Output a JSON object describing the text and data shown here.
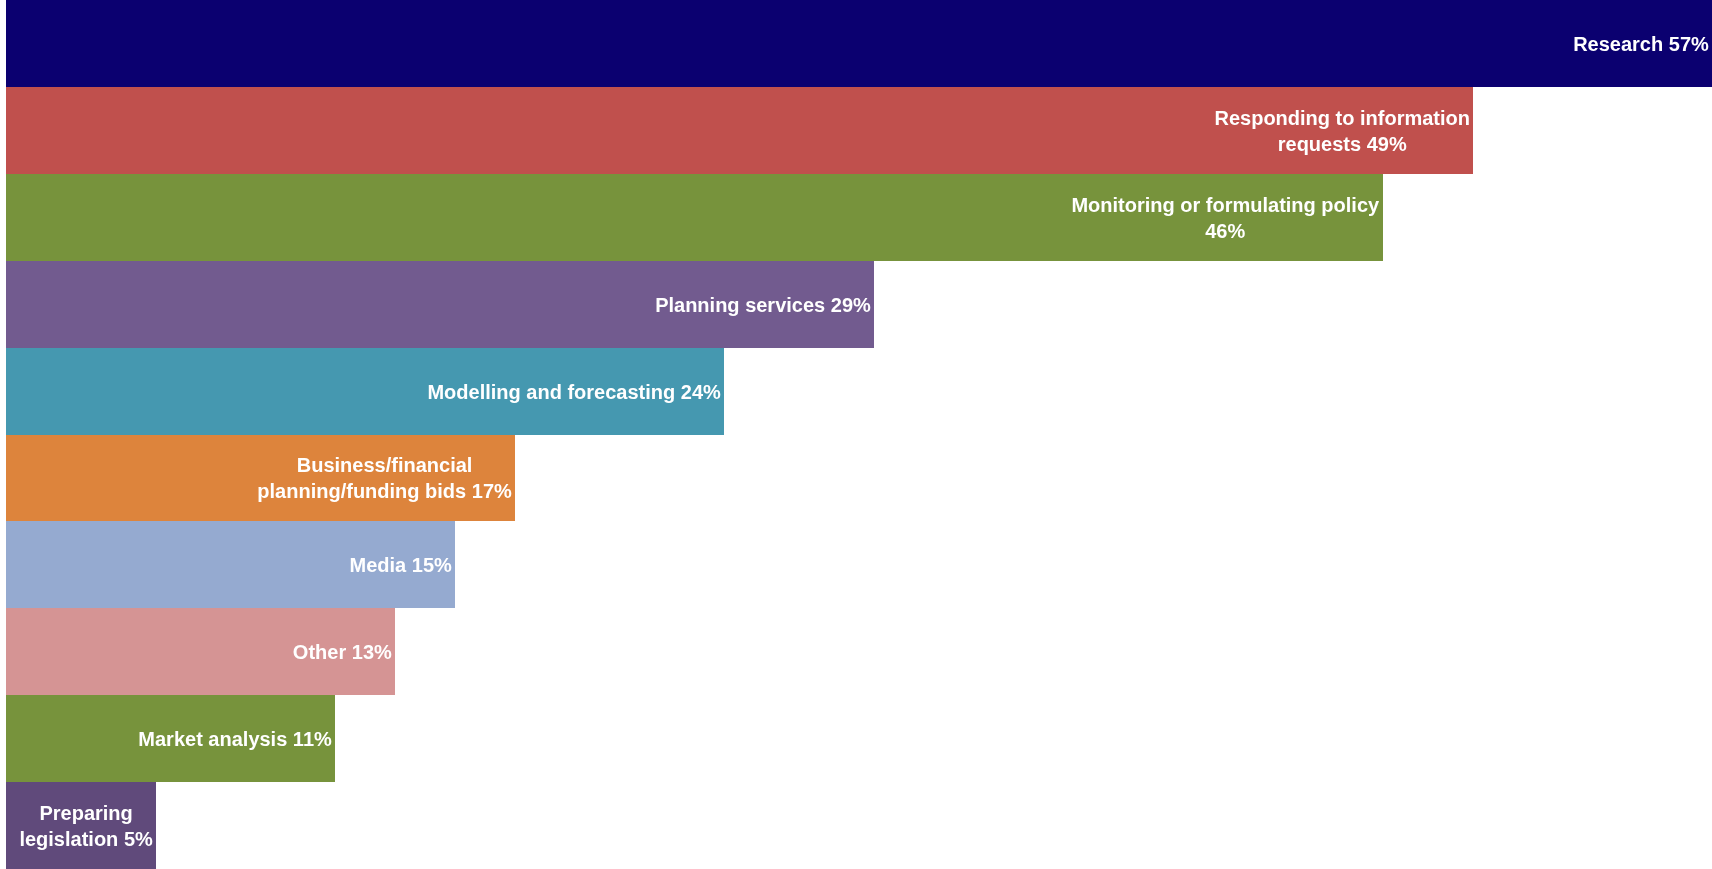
{
  "chart_data": {
    "type": "bar",
    "orientation": "horizontal",
    "categories": [
      "Research",
      "Responding to information requests",
      "Monitoring or formulating policy",
      "Planning services",
      "Modelling and forecasting",
      "Business/financial planning/funding bids",
      "Media",
      "Other",
      "Market analysis",
      "Preparing legislation"
    ],
    "values": [
      57,
      49,
      46,
      29,
      24,
      17,
      15,
      13,
      11,
      5
    ],
    "value_labels": [
      "57%",
      "49%",
      "46%",
      "29%",
      "24%",
      "17%",
      "15%",
      "13%",
      "11%",
      "5%"
    ],
    "colors": [
      "#0b0070",
      "#c0504d",
      "#77933c",
      "#725b8f",
      "#4598b0",
      "#dd843c",
      "#95aad0",
      "#d59494",
      "#77933c",
      "#604a7b"
    ],
    "legend": false
  }
}
